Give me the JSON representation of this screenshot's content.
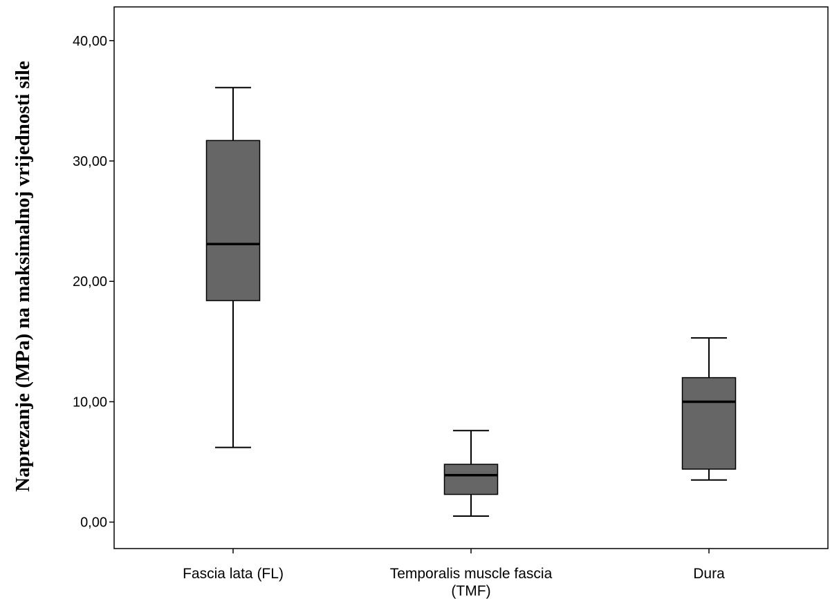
{
  "chart_data": {
    "type": "box",
    "title": "",
    "xlabel": "",
    "ylabel": "Naprezanje (MPa) na maksimalnoj vrijednosti sile",
    "ylim": [
      -2.2,
      42.8
    ],
    "yticks": [
      0,
      10,
      20,
      30,
      40
    ],
    "ytick_labels": [
      "0,00",
      "10,00",
      "20,00",
      "30,00",
      "40,00"
    ],
    "grid": false,
    "box_color": "#666666",
    "categories": [
      [
        "Fascia lata (FL)"
      ],
      [
        "Temporalis muscle fascia",
        "(TMF)"
      ],
      [
        "Dura"
      ]
    ],
    "boxes": [
      {
        "whisker_low": 6.2,
        "q1": 18.4,
        "median": 23.1,
        "q3": 31.7,
        "whisker_high": 36.1
      },
      {
        "whisker_low": 0.5,
        "q1": 2.3,
        "median": 3.9,
        "q3": 4.8,
        "whisker_high": 7.6
      },
      {
        "whisker_low": 3.5,
        "q1": 4.4,
        "median": 10.0,
        "q3": 12.0,
        "whisker_high": 15.3
      }
    ]
  }
}
